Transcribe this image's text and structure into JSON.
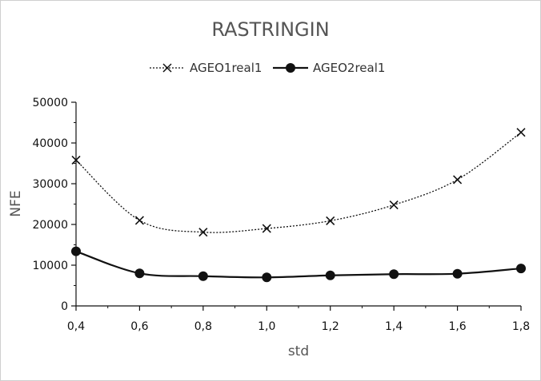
{
  "chart_data": {
    "type": "line",
    "title": "RASTRINGIN",
    "xlabel": "std",
    "ylabel": "NFE",
    "x": [
      0.4,
      0.6,
      0.8,
      1.0,
      1.2,
      1.4,
      1.6,
      1.8
    ],
    "x_tick_labels": [
      "0,4",
      "0,6",
      "0,8",
      "1,0",
      "1,2",
      "1,4",
      "1,6",
      "1,8"
    ],
    "y_tick_labels": [
      "0",
      "10000",
      "20000",
      "30000",
      "40000",
      "50000"
    ],
    "xlim": [
      0.4,
      1.8
    ],
    "ylim": [
      0,
      50000
    ],
    "grid": false,
    "legend_position": "top-center",
    "series": [
      {
        "name": "AGEO1real1",
        "marker": "x",
        "line_style": "dotted",
        "color": "#111111",
        "values": [
          35800,
          21000,
          18100,
          19000,
          20900,
          24800,
          31000,
          42600
        ]
      },
      {
        "name": "AGEO2real1",
        "marker": "filled-circle",
        "line_style": "solid",
        "color": "#111111",
        "values": [
          13400,
          8000,
          7300,
          7000,
          7500,
          7800,
          7900,
          9200
        ]
      }
    ]
  }
}
